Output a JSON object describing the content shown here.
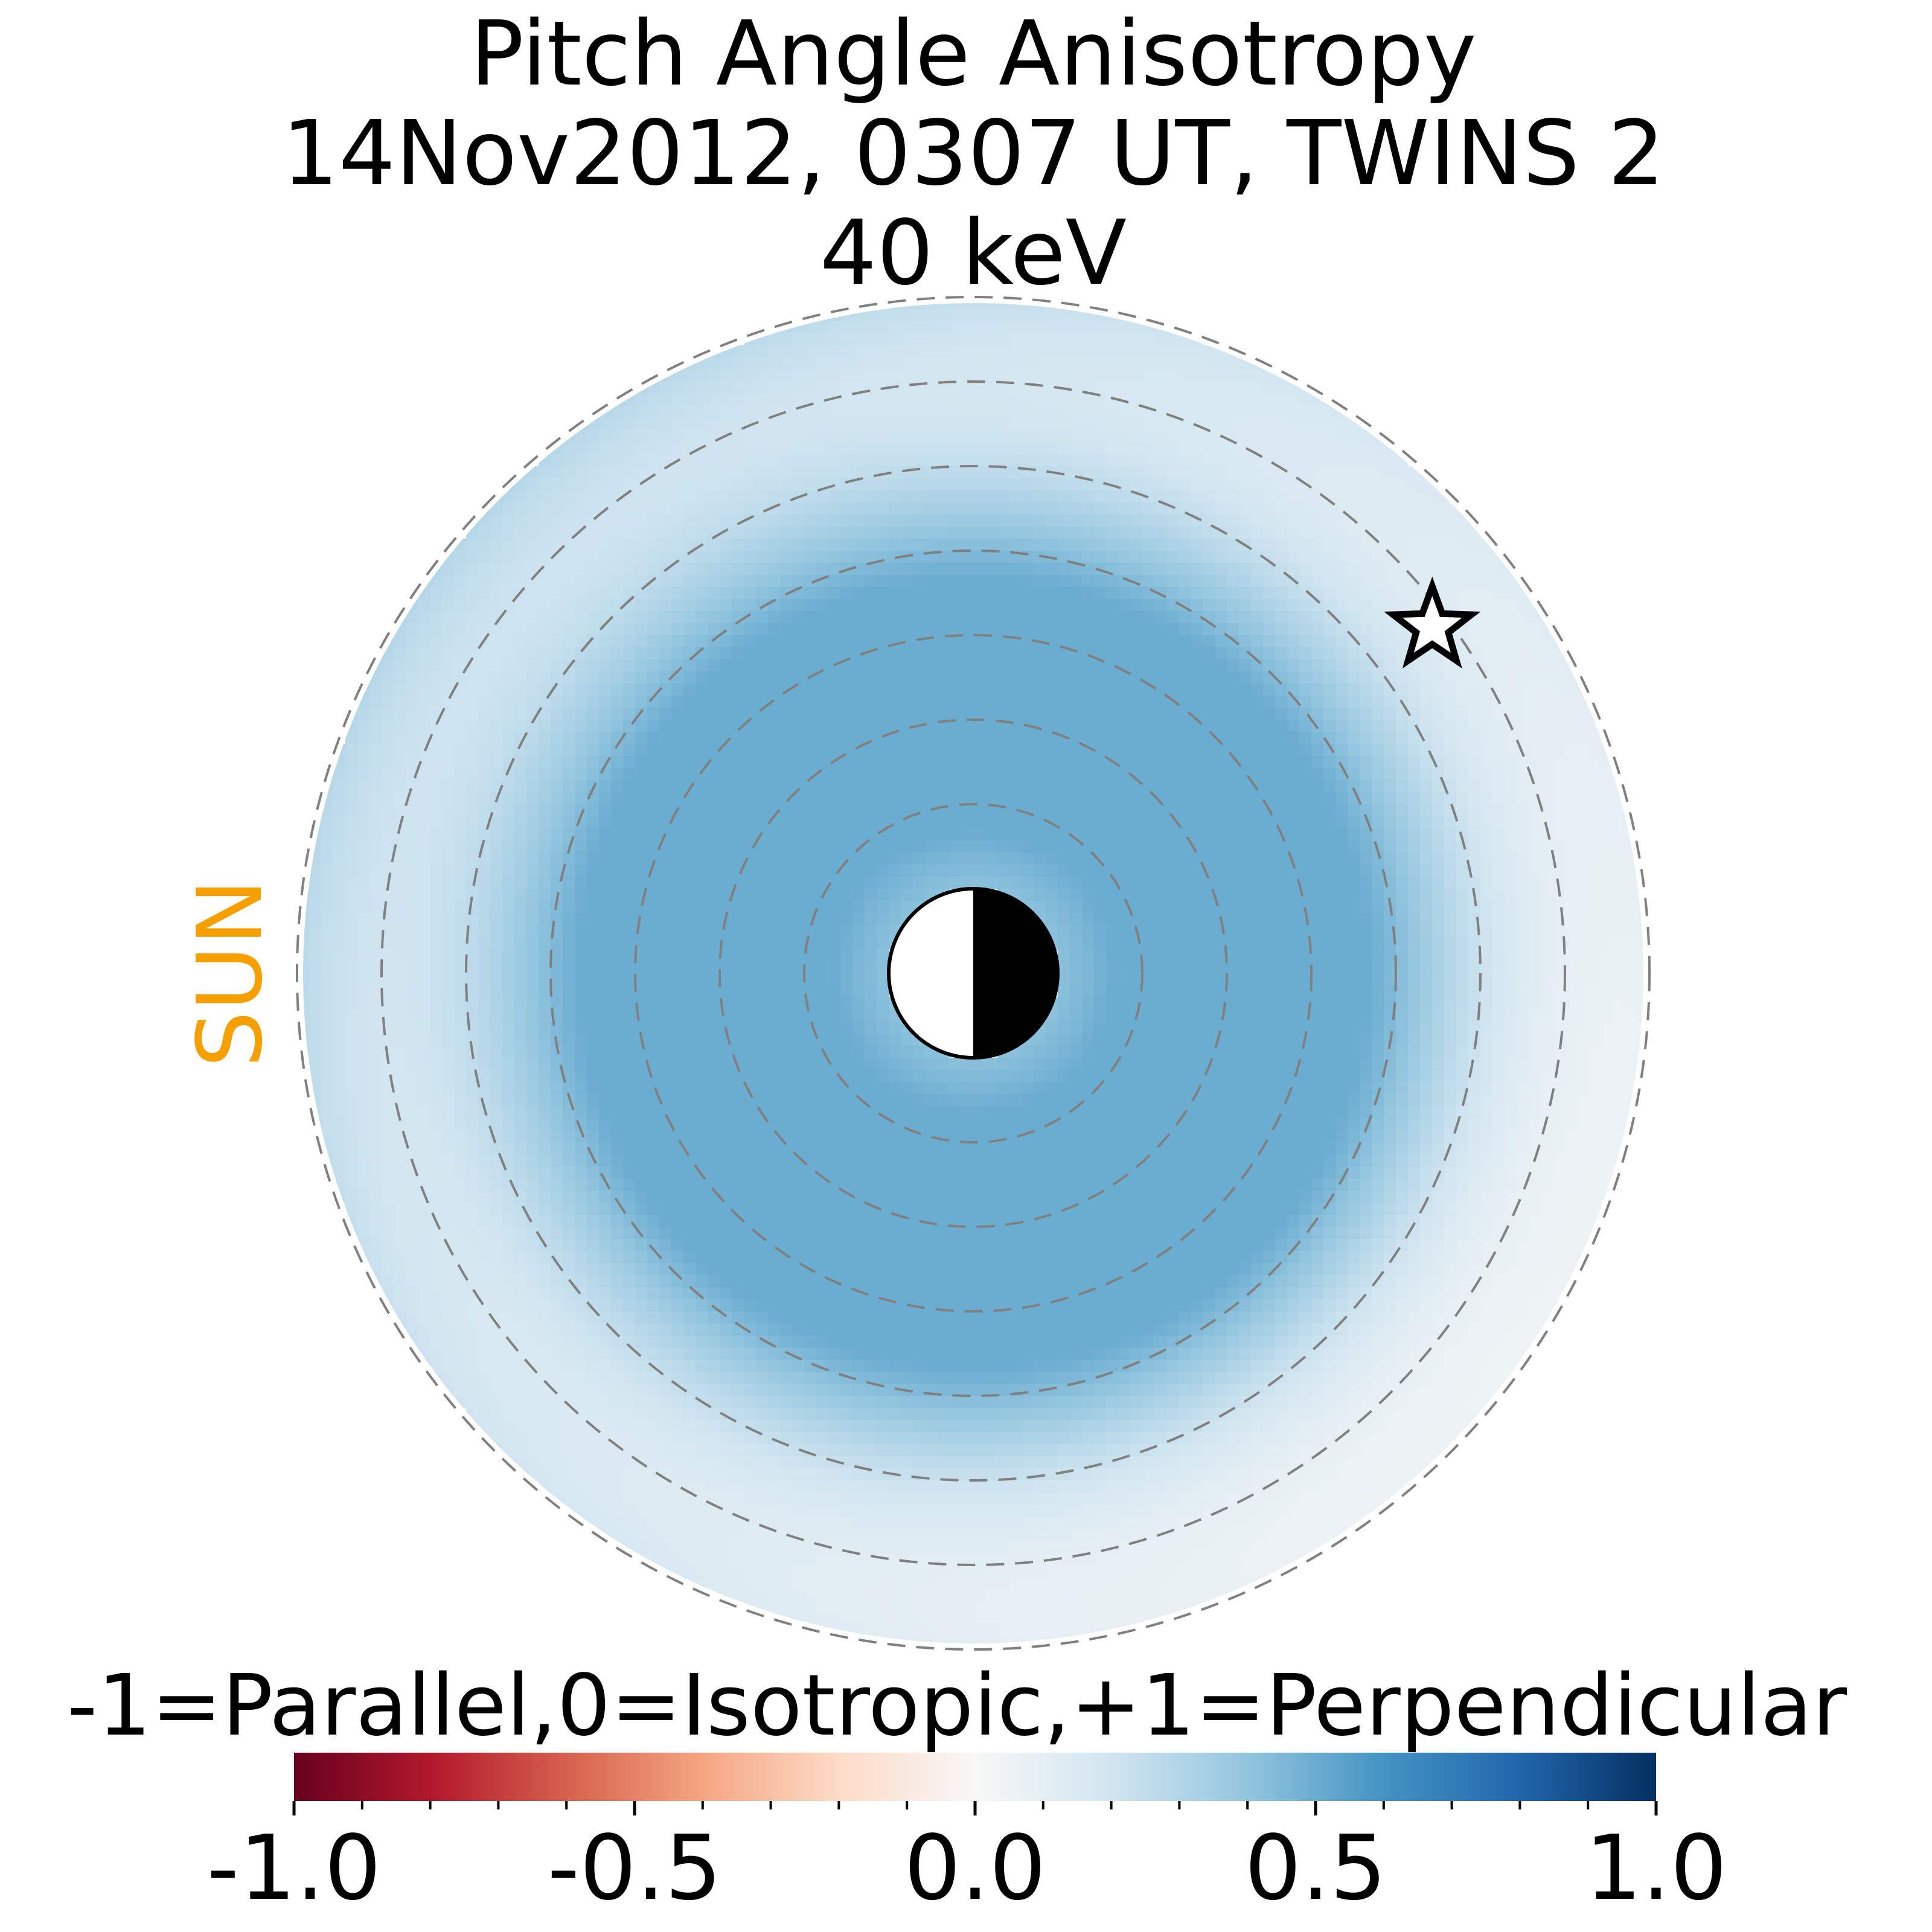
{
  "chart_data": {
    "type": "heatmap",
    "projection": "polar equatorial map, Sun to the left",
    "title": [
      "Pitch Angle Anisotropy",
      "14Nov2012, 0307 UT,  TWINS 2",
      "40 keV"
    ],
    "sun_label": "SUN",
    "colorbar": {
      "label": "-1=Parallel,0=Isotropic,+1=Perpendicular",
      "range": [
        -1.0,
        1.0
      ],
      "colormap": "RdBu",
      "colormap_stops": [
        "#67001f",
        "#b2182b",
        "#d6604d",
        "#f4a582",
        "#fddbc7",
        "#f7f7f7",
        "#d1e5f0",
        "#92c5de",
        "#4393c3",
        "#2166ac",
        "#053061"
      ],
      "ticks": [
        -1.0,
        -0.5,
        0.0,
        0.5,
        1.0
      ],
      "tick_labels": [
        "-1.0",
        "-0.5",
        "0.0",
        "0.5",
        "1.0"
      ],
      "minor_tick_step": 0.1
    },
    "radial_rings": {
      "count": 8,
      "style": "dashed",
      "color": "#808080"
    },
    "data_region": {
      "inner_ring_index": 1,
      "outer_ring_index": 8
    },
    "anisotropy_summary": {
      "inner_edge": 0.5,
      "middle_band_peak": 0.5,
      "outer_edge_dayside": 0.3,
      "outer_edge_dawn_nightside": 0.05,
      "overall_range": [
        0.05,
        0.5
      ]
    },
    "spacecraft_marker": {
      "symbol": "star",
      "ring_position": 6.8,
      "direction_deg_from_sun_axis": 143
    },
    "earth_symbol": "half-lit disk, dayside toward Sun"
  }
}
